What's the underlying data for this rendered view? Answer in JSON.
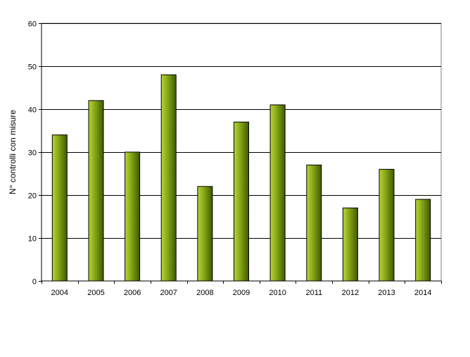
{
  "chart_data": {
    "type": "bar",
    "categories": [
      "2004",
      "2005",
      "2006",
      "2007",
      "2008",
      "2009",
      "2010",
      "2011",
      "2012",
      "2013",
      "2014"
    ],
    "values": [
      34,
      42,
      30,
      48,
      22,
      37,
      41,
      27,
      17,
      26,
      19
    ],
    "title": "",
    "xlabel": "",
    "ylabel": "N° controlli con misure",
    "ylim": [
      0,
      60
    ],
    "yticks": [
      0,
      10,
      20,
      30,
      40,
      50,
      60
    ],
    "grid": true,
    "legend": "none",
    "bar_color": "#7a9e10"
  }
}
